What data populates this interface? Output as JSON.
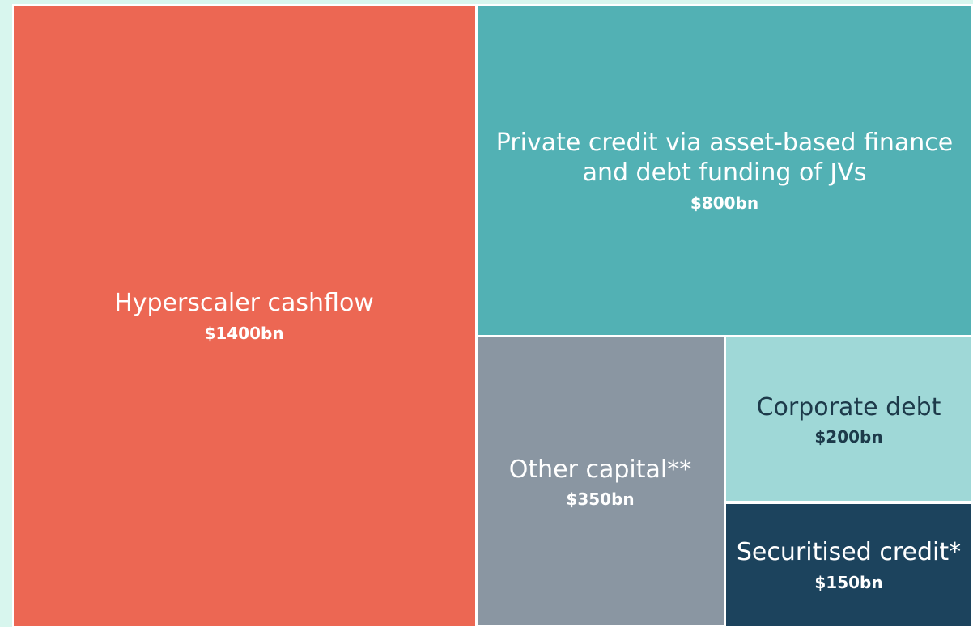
{
  "chart_data": {
    "type": "treemap",
    "categories": [
      "Hyperscaler cashflow",
      "Private credit via asset-based finance and debt funding of JVs",
      "Other capital**",
      "Corporate debt",
      "Securitised credit*"
    ],
    "values": [
      1400,
      800,
      350,
      200,
      150
    ],
    "value_labels": [
      "$1400bn",
      "$800bn",
      "$350bn",
      "$200bn",
      "$150bn"
    ],
    "colors": [
      "#ec6753",
      "#52b1b4",
      "#8a96a2",
      "#9fd8d7",
      "#1c435d"
    ],
    "label_colors": [
      "#ffffff",
      "#ffffff",
      "#ffffff",
      "#1d3a4a",
      "#ffffff"
    ]
  }
}
